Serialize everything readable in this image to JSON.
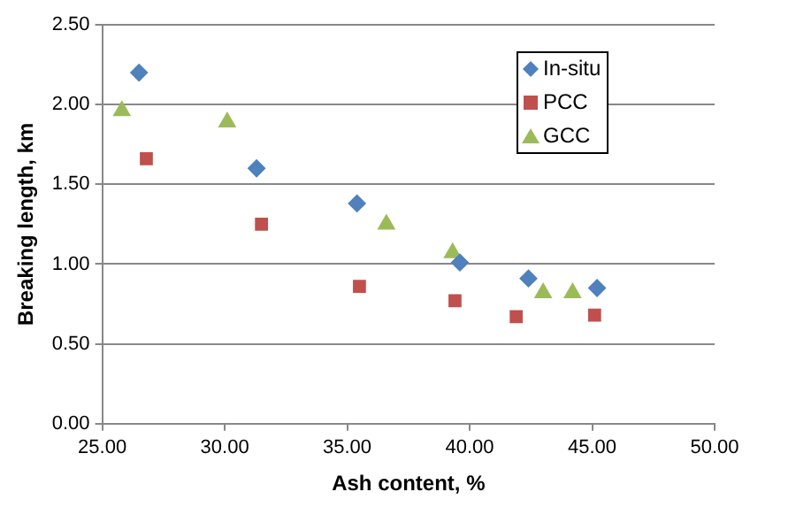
{
  "chart_data": {
    "type": "scatter",
    "xlabel": "Ash content, %",
    "ylabel": "Breaking length, km",
    "xlim": [
      25,
      50
    ],
    "xticks": [
      {
        "value": 25,
        "label": "25.00"
      },
      {
        "value": 30,
        "label": "30.00"
      },
      {
        "value": 35,
        "label": "35.00"
      },
      {
        "value": 40,
        "label": "40.00"
      },
      {
        "value": 45,
        "label": "45.00"
      },
      {
        "value": 50,
        "label": "50.00"
      }
    ],
    "ylim": [
      0,
      2.5
    ],
    "yticks": [
      {
        "value": 0,
        "label": "0.00"
      },
      {
        "value": 0.5,
        "label": "0.50"
      },
      {
        "value": 1,
        "label": "1.00"
      },
      {
        "value": 1.5,
        "label": "1.50"
      },
      {
        "value": 2,
        "label": "2.00"
      },
      {
        "value": 2.5,
        "label": "2.50"
      }
    ],
    "grid": "y",
    "legend": "top right",
    "series": [
      {
        "name": "In-situ",
        "color": "#4f81bd",
        "marker": "diamond",
        "x": [
          26.5,
          31.3,
          35.4,
          39.6,
          42.4,
          45.2
        ],
        "values": [
          2.2,
          1.6,
          1.38,
          1.01,
          0.91,
          0.85
        ]
      },
      {
        "name": "PCC",
        "color": "#c0504d",
        "marker": "square",
        "x": [
          26.8,
          31.5,
          35.5,
          39.4,
          41.9,
          45.1
        ],
        "values": [
          1.66,
          1.25,
          0.86,
          0.77,
          0.67,
          0.68
        ]
      },
      {
        "name": "GCC",
        "color": "#9bbb59",
        "marker": "triangle",
        "x": [
          25.8,
          30.1,
          36.6,
          39.3,
          43.0,
          44.2
        ],
        "values": [
          1.96,
          1.89,
          1.25,
          1.07,
          0.82,
          0.82
        ]
      }
    ]
  }
}
